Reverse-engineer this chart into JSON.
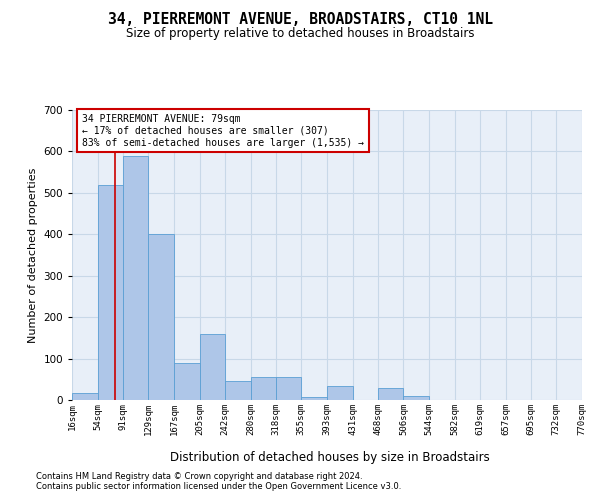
{
  "title": "34, PIERREMONT AVENUE, BROADSTAIRS, CT10 1NL",
  "subtitle": "Size of property relative to detached houses in Broadstairs",
  "xlabel": "Distribution of detached houses by size in Broadstairs",
  "ylabel": "Number of detached properties",
  "footnote1": "Contains HM Land Registry data © Crown copyright and database right 2024.",
  "footnote2": "Contains public sector information licensed under the Open Government Licence v3.0.",
  "property_size": 79,
  "annotation_line1": "34 PIERREMONT AVENUE: 79sqm",
  "annotation_line2": "← 17% of detached houses are smaller (307)",
  "annotation_line3": "83% of semi-detached houses are larger (1,535) →",
  "bar_edges": [
    16,
    54,
    91,
    129,
    167,
    205,
    242,
    280,
    318,
    355,
    393,
    431,
    468,
    506,
    544,
    582,
    619,
    657,
    695,
    732,
    770
  ],
  "bar_heights": [
    18,
    520,
    590,
    400,
    90,
    160,
    45,
    55,
    55,
    8,
    35,
    0,
    28,
    10,
    0,
    0,
    0,
    0,
    0,
    0
  ],
  "bar_color": "#aec6e8",
  "bar_edgecolor": "#5a9fd4",
  "redline_color": "#cc0000",
  "grid_color": "#c8d8e8",
  "background_color": "#e8eff8",
  "annotation_box_edgecolor": "#cc0000",
  "annotation_box_facecolor": "#ffffff",
  "ylim": [
    0,
    700
  ],
  "yticks": [
    0,
    100,
    200,
    300,
    400,
    500,
    600,
    700
  ],
  "tick_labels": [
    "16sqm",
    "54sqm",
    "91sqm",
    "129sqm",
    "167sqm",
    "205sqm",
    "242sqm",
    "280sqm",
    "318sqm",
    "355sqm",
    "393sqm",
    "431sqm",
    "468sqm",
    "506sqm",
    "544sqm",
    "582sqm",
    "619sqm",
    "657sqm",
    "695sqm",
    "732sqm",
    "770sqm"
  ]
}
